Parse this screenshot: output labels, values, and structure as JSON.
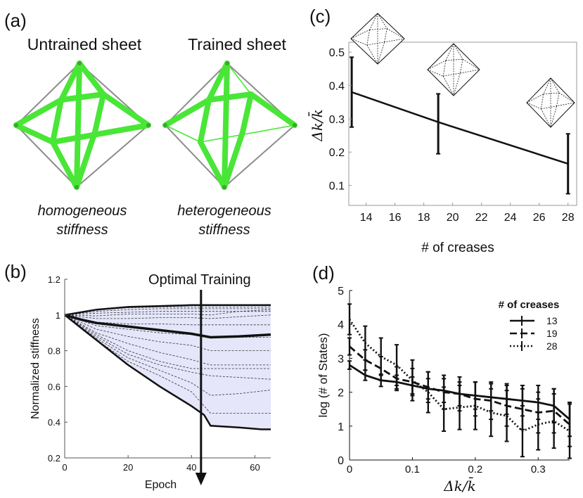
{
  "panels": {
    "a": {
      "letter": "(a)",
      "left_title": "Untrained sheet",
      "right_title": "Trained sheet",
      "left_caption": [
        "homogeneous",
        "stiffness"
      ],
      "right_caption": [
        "heterogeneous",
        "stiffness"
      ],
      "crease_color": "#49e637",
      "frame_color": "#8c8c8c"
    },
    "b": {
      "letter": "(b)"
    },
    "c": {
      "letter": "(c)"
    },
    "d": {
      "letter": "(d)"
    }
  },
  "chart_data": [
    {
      "id": "b",
      "type": "area",
      "xlabel": "Epoch",
      "ylabel": "Normalized stiffness",
      "xlim": [
        0,
        65
      ],
      "ylim": [
        0.2,
        1.2
      ],
      "xticks": [
        0,
        20,
        40,
        60
      ],
      "yticks": [
        0.2,
        0.4,
        0.6,
        0.8,
        1,
        1.2
      ],
      "grid": false,
      "fill_color": "#e5e6fa",
      "annotation": {
        "text": "Optimal Training",
        "x": 43
      },
      "envelope_upper": {
        "x": [
          0,
          10,
          20,
          30,
          40,
          50,
          65
        ],
        "y": [
          1,
          1.03,
          1.045,
          1.05,
          1.055,
          1.055,
          1.055
        ]
      },
      "envelope_lower": {
        "x": [
          0,
          5,
          10,
          20,
          30,
          40,
          44,
          46,
          55,
          62,
          65
        ],
        "y": [
          1,
          0.93,
          0.86,
          0.72,
          0.6,
          0.49,
          0.44,
          0.38,
          0.37,
          0.36,
          0.36
        ]
      },
      "mean": {
        "x": [
          0,
          5,
          10,
          20,
          30,
          40,
          46,
          55,
          65
        ],
        "y": [
          1,
          0.975,
          0.955,
          0.935,
          0.915,
          0.895,
          0.875,
          0.88,
          0.89
        ]
      },
      "dashed_series": [
        {
          "x": [
            0,
            10,
            20,
            30,
            40,
            50,
            65
          ],
          "y": [
            1,
            1.03,
            1.04,
            1.045,
            1.045,
            1.045,
            1.045
          ]
        },
        {
          "x": [
            0,
            10,
            20,
            30,
            40,
            50,
            65
          ],
          "y": [
            1,
            1.02,
            1.03,
            1.035,
            1.035,
            1.035,
            1.035
          ]
        },
        {
          "x": [
            0,
            10,
            20,
            30,
            40,
            50,
            65
          ],
          "y": [
            1,
            1.01,
            1.015,
            1.02,
            1.02,
            1.02,
            1.02
          ]
        },
        {
          "x": [
            0,
            10,
            20,
            30,
            40,
            46,
            55,
            65
          ],
          "y": [
            1,
            0.995,
            1.005,
            1.005,
            1.005,
            1.0,
            1.02,
            1.03
          ]
        },
        {
          "x": [
            0,
            10,
            20,
            30,
            40,
            46,
            55,
            65
          ],
          "y": [
            1,
            0.98,
            0.98,
            0.985,
            0.985,
            0.98,
            0.99,
            1.0
          ]
        },
        {
          "x": [
            0,
            10,
            20,
            30,
            40,
            50,
            65
          ],
          "y": [
            1,
            0.96,
            0.95,
            0.95,
            0.945,
            0.945,
            0.945
          ]
        },
        {
          "x": [
            0,
            10,
            20,
            30,
            40,
            46,
            65
          ],
          "y": [
            1,
            0.94,
            0.92,
            0.9,
            0.89,
            0.875,
            0.875
          ]
        },
        {
          "x": [
            0,
            10,
            20,
            30,
            40,
            46,
            65
          ],
          "y": [
            1,
            0.92,
            0.88,
            0.85,
            0.83,
            0.8,
            0.8
          ]
        },
        {
          "x": [
            0,
            10,
            20,
            30,
            40,
            46,
            65
          ],
          "y": [
            1,
            0.9,
            0.84,
            0.79,
            0.75,
            0.72,
            0.72
          ]
        },
        {
          "x": [
            0,
            10,
            20,
            30,
            40,
            46,
            65
          ],
          "y": [
            1,
            0.89,
            0.8,
            0.74,
            0.7,
            0.7,
            0.7
          ]
        },
        {
          "x": [
            0,
            10,
            20,
            30,
            40,
            46,
            65
          ],
          "y": [
            1,
            0.88,
            0.78,
            0.72,
            0.68,
            0.66,
            0.64
          ]
        },
        {
          "x": [
            0,
            10,
            20,
            30,
            40,
            46,
            55,
            65
          ],
          "y": [
            1,
            0.87,
            0.76,
            0.69,
            0.62,
            0.55,
            0.56,
            0.58
          ]
        },
        {
          "x": [
            0,
            10,
            20,
            30,
            40,
            46,
            65
          ],
          "y": [
            1,
            0.86,
            0.74,
            0.66,
            0.57,
            0.45,
            0.45
          ]
        }
      ]
    },
    {
      "id": "c",
      "type": "line",
      "xlabel": "# of creases",
      "ylabel": "Δk/k̄",
      "xlim": [
        12.8,
        28.6
      ],
      "ylim": [
        0.04,
        0.53
      ],
      "xticks": [
        14,
        16,
        18,
        20,
        22,
        24,
        26,
        28
      ],
      "yticks": [
        0.1,
        0.2,
        0.3,
        0.4,
        0.5
      ],
      "grid": false,
      "x": [
        13,
        19,
        28
      ],
      "y": [
        0.38,
        0.29,
        0.165
      ],
      "err_low": [
        0.275,
        0.195,
        0.075
      ],
      "err_high": [
        0.485,
        0.375,
        0.255
      ]
    },
    {
      "id": "d",
      "type": "line",
      "xlabel": "Δk/k̄",
      "ylabel": "log (# of States)",
      "xlim": [
        0,
        0.35
      ],
      "ylim": [
        0,
        5
      ],
      "xticks": [
        0,
        0.1,
        0.2,
        0.3
      ],
      "yticks": [
        0,
        1,
        2,
        3,
        4,
        5
      ],
      "grid": false,
      "legend_title": "# of creases",
      "legend_placement": "top-right",
      "x": [
        0,
        0.025,
        0.05,
        0.075,
        0.1,
        0.125,
        0.15,
        0.175,
        0.2,
        0.225,
        0.25,
        0.275,
        0.3,
        0.325,
        0.35
      ],
      "series": [
        {
          "name": "13",
          "style": "solid",
          "values": [
            2.8,
            2.5,
            2.35,
            2.3,
            2.2,
            2.1,
            2.05,
            1.95,
            1.9,
            1.85,
            1.8,
            1.75,
            1.7,
            1.6,
            1.2
          ],
          "err": [
            0.12,
            0.15,
            0.18,
            0.2,
            0.25,
            0.3,
            0.35,
            0.35,
            0.4,
            0.4,
            0.45,
            0.45,
            0.5,
            0.5,
            0.5
          ]
        },
        {
          "name": "19",
          "style": "dashed",
          "values": [
            3.35,
            2.95,
            2.7,
            2.4,
            2.3,
            2.15,
            2.0,
            1.95,
            1.8,
            1.75,
            1.6,
            1.5,
            1.4,
            1.45,
            1.05
          ],
          "err": [
            0.25,
            0.3,
            0.35,
            0.35,
            0.4,
            0.45,
            0.5,
            0.5,
            0.5,
            0.55,
            0.6,
            0.6,
            0.6,
            0.65,
            0.65
          ]
        },
        {
          "name": "28",
          "style": "dotted",
          "values": [
            4.15,
            3.45,
            3.05,
            2.8,
            2.35,
            2.0,
            1.5,
            1.55,
            1.6,
            1.4,
            1.3,
            0.85,
            1.05,
            1.15,
            0.85
          ],
          "err": [
            0.45,
            0.5,
            0.55,
            0.6,
            0.6,
            0.6,
            0.65,
            0.65,
            0.7,
            0.7,
            0.75,
            0.75,
            0.75,
            0.8,
            0.8
          ]
        }
      ]
    }
  ]
}
